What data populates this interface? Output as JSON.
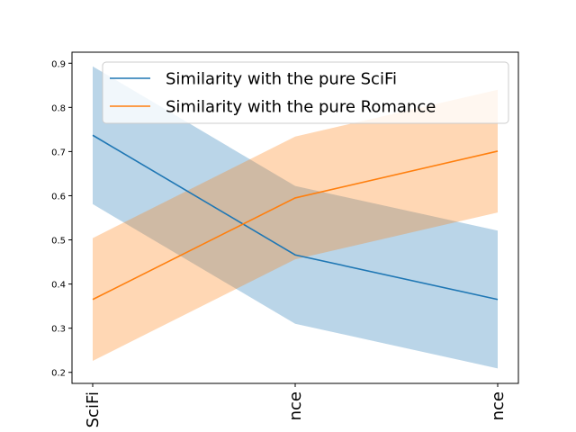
{
  "chart_data": {
    "type": "line",
    "title": "",
    "xlabel": "",
    "ylabel": "",
    "categories": [
      "SciFi",
      "nce",
      "nce"
    ],
    "ylim": [
      0.175,
      0.925
    ],
    "yticks": [
      0.2,
      0.3,
      0.4,
      0.5,
      0.6,
      0.7,
      0.8,
      0.9
    ],
    "ytick_labels": [
      "0.2",
      "0.3",
      "0.4",
      "0.5",
      "0.6",
      "0.7",
      "0.8",
      "0.9"
    ],
    "grid": false,
    "legend_position": "upper-right",
    "series": [
      {
        "name": "Similarity with the pure SciFi",
        "color": "#1f77b4",
        "values": [
          0.737,
          0.466,
          0.365
        ],
        "lower": [
          0.581,
          0.31,
          0.209
        ],
        "upper": [
          0.893,
          0.622,
          0.521
        ]
      },
      {
        "name": "Similarity with the pure Romance",
        "color": "#ff7f0e",
        "values": [
          0.365,
          0.595,
          0.701
        ],
        "lower": [
          0.226,
          0.456,
          0.562
        ],
        "upper": [
          0.504,
          0.734,
          0.84
        ]
      }
    ]
  }
}
